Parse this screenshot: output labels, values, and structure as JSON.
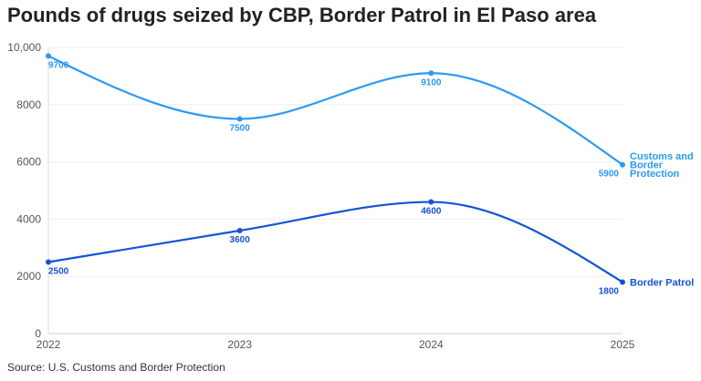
{
  "chart_data": {
    "type": "line",
    "title": "Pounds of drugs seized by CBP, Border Patrol in El Paso area",
    "source": "Source: U.S. Customs and Border Protection",
    "x": [
      "2022",
      "2023",
      "2024",
      "2025"
    ],
    "ylim": [
      0,
      10000
    ],
    "yticks": [
      "0",
      "2000",
      "4000",
      "6000",
      "8000",
      "10,000"
    ],
    "grid": true,
    "series": [
      {
        "name": "Customs and Border Protection",
        "label_lines": [
          "Customs and",
          "Border",
          "Protection"
        ],
        "values": [
          9700,
          7500,
          9100,
          5900
        ],
        "color": "#2b9af3"
      },
      {
        "name": "Border Patrol",
        "label_lines": [
          "Border Patrol"
        ],
        "values": [
          2500,
          3600,
          4600,
          1800
        ],
        "color": "#1553d6"
      }
    ]
  }
}
